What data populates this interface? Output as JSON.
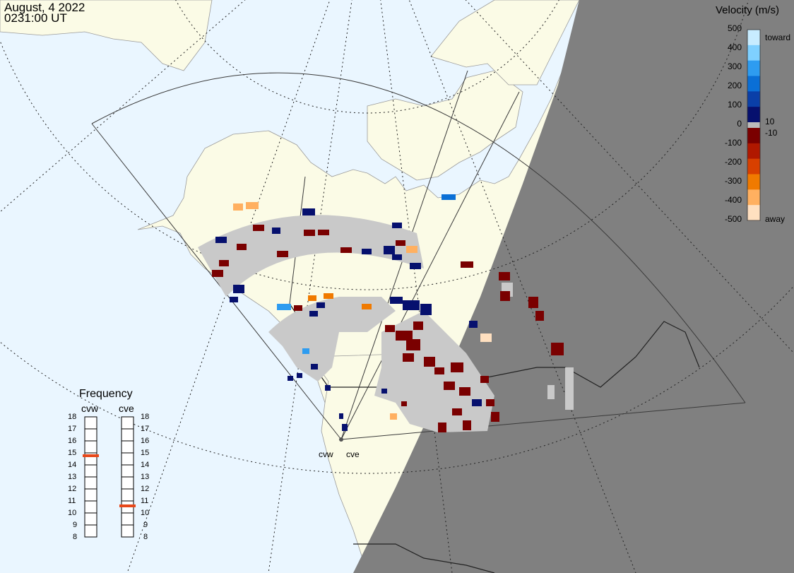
{
  "header": {
    "date": "August, 4 2022",
    "time": "0231:00 UT"
  },
  "velocity_scale": {
    "title": "Velocity (m/s)",
    "ticks": [
      "500",
      "400",
      "300",
      "200",
      "100",
      "0",
      "-100",
      "-200",
      "-300",
      "-400",
      "-500"
    ],
    "near_zero_upper": "10",
    "near_zero_lower": "-10",
    "toward_label": "toward",
    "away_label": "away",
    "colors": [
      "#c8ecff",
      "#7fd0ff",
      "#2e9cf0",
      "#0a6fd6",
      "#0a3fa8",
      "#06106e",
      "#7a0000",
      "#b01800",
      "#d84000",
      "#f07a00",
      "#ffb060",
      "#ffe0c0"
    ]
  },
  "frequency": {
    "title": "Frequency",
    "radars": [
      {
        "name": "cvw",
        "value_mhz": 15,
        "marker_color": "#e8481a"
      },
      {
        "name": "cve",
        "value_mhz": 11,
        "marker_color": "#e8481a"
      }
    ],
    "scale_labels": [
      "18",
      "17",
      "16",
      "15",
      "14",
      "13",
      "12",
      "11",
      "10",
      "9",
      "8"
    ]
  },
  "radar_labels": {
    "west": "cvw",
    "east": "cve"
  },
  "colors": {
    "ocean": "#eaf6ff",
    "land": "#fbfbe6",
    "night": "#808080",
    "ground_scatter": "#c9c9c9"
  }
}
